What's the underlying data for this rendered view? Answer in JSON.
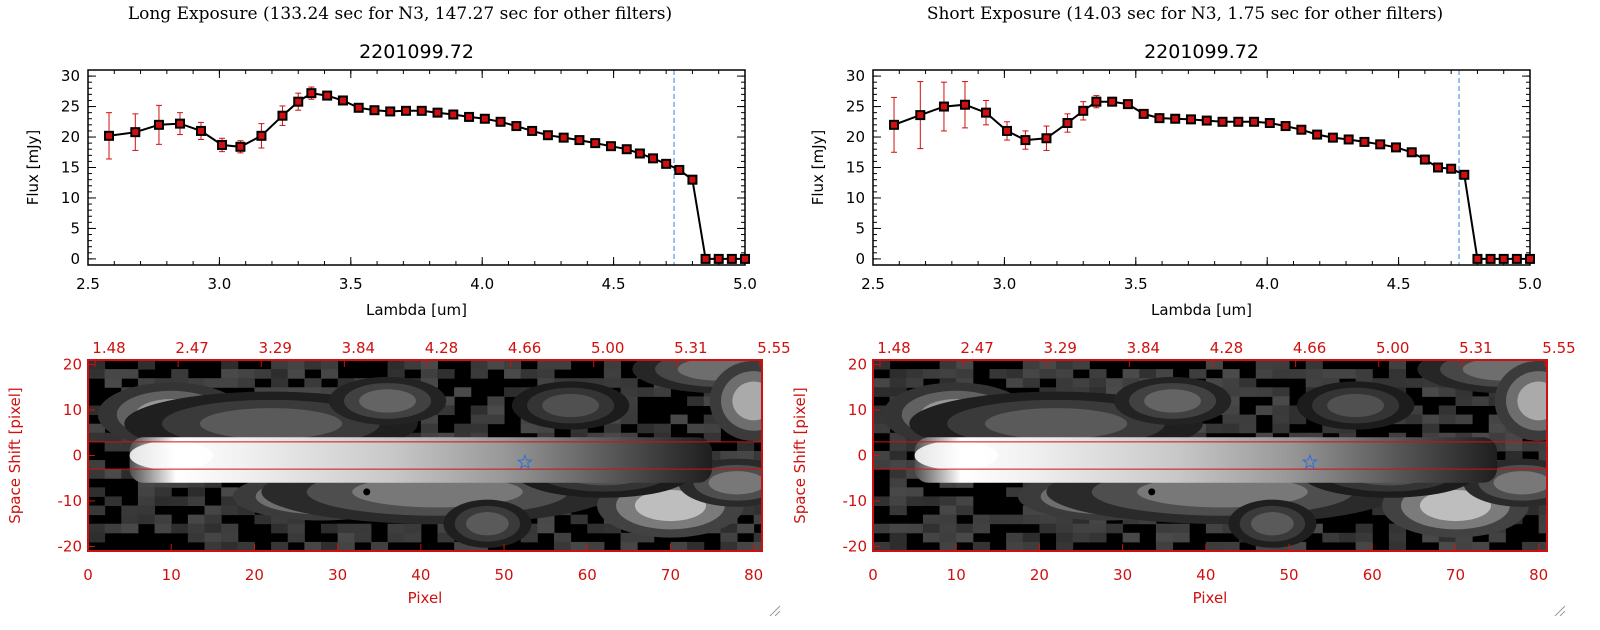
{
  "panels": [
    {
      "exposure_title": "Long Exposure (133.24 sec for N3, 147.27 sec for other filters)",
      "chart_data": {
        "type": "line",
        "title": "2201099.72",
        "xlabel": "Lambda [um]",
        "ylabel": "Flux [mJy]",
        "xlim": [
          2.5,
          5.0
        ],
        "ylim": [
          -1,
          31
        ],
        "xticks": [
          "2.5",
          "3.0",
          "3.5",
          "4.0",
          "4.5",
          "5.0"
        ],
        "yticks": [
          "0",
          "5",
          "10",
          "15",
          "20",
          "25",
          "30"
        ],
        "x": [
          2.58,
          2.68,
          2.77,
          2.85,
          2.93,
          3.01,
          3.08,
          3.16,
          3.24,
          3.3,
          3.35,
          3.41,
          3.47,
          3.53,
          3.59,
          3.65,
          3.71,
          3.77,
          3.83,
          3.89,
          3.95,
          4.01,
          4.07,
          4.13,
          4.19,
          4.25,
          4.31,
          4.37,
          4.43,
          4.49,
          4.55,
          4.6,
          4.65,
          4.7,
          4.75,
          4.8,
          4.85,
          4.9,
          4.95,
          5.0
        ],
        "y": [
          20.2,
          20.8,
          22.0,
          22.2,
          21.0,
          18.7,
          18.4,
          20.2,
          23.5,
          25.8,
          27.2,
          26.8,
          26.0,
          24.8,
          24.4,
          24.2,
          24.3,
          24.3,
          24.0,
          23.7,
          23.3,
          23.0,
          22.5,
          21.8,
          21.0,
          20.3,
          19.9,
          19.5,
          19.0,
          18.5,
          18.0,
          17.3,
          16.5,
          15.6,
          14.6,
          13.0,
          0,
          0,
          0,
          0
        ],
        "yerr": [
          3.8,
          3.0,
          3.2,
          1.8,
          1.4,
          1.1,
          1.0,
          2.0,
          1.6,
          1.4,
          1.0,
          0.7,
          0.5,
          0.4,
          0.4,
          0.3,
          0.3,
          0.3,
          0.3,
          0.3,
          0.3,
          0.3,
          0.3,
          0.3,
          0.3,
          0.3,
          0.3,
          0.3,
          0.3,
          0.3,
          0.3,
          0.3,
          0.3,
          0.3,
          0.3,
          0.3,
          0,
          0,
          0,
          0
        ],
        "vline_x": 4.73,
        "line_color": "#000000",
        "marker_color": "#d01010",
        "error_color": "#d01010",
        "vline_color": "#3a7fe0",
        "image_panel": {
          "top_tick_labels": [
            "1.48",
            "2.47",
            "3.29",
            "3.84",
            "4.28",
            "4.66",
            "5.00",
            "5.31",
            "5.55"
          ],
          "bottom_ticks": [
            "0",
            "10",
            "20",
            "30",
            "40",
            "50",
            "60",
            "70",
            "80"
          ],
          "left_ticks": [
            "20",
            "10",
            "0",
            "-10",
            "-20"
          ],
          "xlabel": "Pixel",
          "ylabel": "Space Shift [pixel]",
          "xlim": [
            0,
            81
          ],
          "ylim": [
            -21,
            21
          ],
          "aperture_lines_y": [
            3,
            -3
          ],
          "star_position": [
            52.5,
            -1.5
          ],
          "axis_color": "#d01010",
          "star_color": "#2f6fd8"
        }
      }
    },
    {
      "exposure_title": "Short Exposure (14.03 sec for N3, 1.75 sec for other filters)",
      "chart_data": {
        "type": "line",
        "title": "2201099.72",
        "xlabel": "Lambda [um]",
        "ylabel": "Flux [mJy]",
        "xlim": [
          2.5,
          5.0
        ],
        "ylim": [
          -1,
          31
        ],
        "xticks": [
          "2.5",
          "3.0",
          "3.5",
          "4.0",
          "4.5",
          "5.0"
        ],
        "yticks": [
          "0",
          "5",
          "10",
          "15",
          "20",
          "25",
          "30"
        ],
        "x": [
          2.58,
          2.68,
          2.77,
          2.85,
          2.93,
          3.01,
          3.08,
          3.16,
          3.24,
          3.3,
          3.35,
          3.41,
          3.47,
          3.53,
          3.59,
          3.65,
          3.71,
          3.77,
          3.83,
          3.89,
          3.95,
          4.01,
          4.07,
          4.13,
          4.19,
          4.25,
          4.31,
          4.37,
          4.43,
          4.49,
          4.55,
          4.6,
          4.65,
          4.7,
          4.75,
          4.8,
          4.85,
          4.9,
          4.95,
          5.0
        ],
        "y": [
          22.0,
          23.6,
          25.0,
          25.3,
          24.0,
          21.0,
          19.5,
          19.8,
          22.3,
          24.3,
          25.8,
          25.8,
          25.4,
          23.8,
          23.1,
          23.0,
          22.9,
          22.7,
          22.5,
          22.5,
          22.5,
          22.3,
          21.8,
          21.2,
          20.4,
          19.9,
          19.6,
          19.2,
          18.8,
          18.3,
          17.5,
          16.3,
          15.0,
          14.8,
          13.8,
          0,
          0,
          0,
          0,
          0
        ],
        "yerr": [
          4.5,
          5.5,
          4.0,
          3.8,
          2.0,
          1.5,
          1.5,
          2.0,
          1.5,
          1.5,
          1.0,
          0.7,
          0.5,
          0.4,
          0.4,
          0.3,
          0.3,
          0.3,
          0.3,
          0.3,
          0.3,
          0.3,
          0.3,
          0.3,
          0.3,
          0.3,
          0.3,
          0.3,
          0.3,
          0.3,
          0.3,
          0.3,
          0.3,
          0.3,
          0.3,
          0,
          0,
          0,
          0,
          0
        ],
        "vline_x": 4.73,
        "line_color": "#000000",
        "marker_color": "#d01010",
        "error_color": "#d01010",
        "vline_color": "#3a7fe0",
        "image_panel": {
          "top_tick_labels": [
            "1.48",
            "2.47",
            "3.29",
            "3.84",
            "4.28",
            "4.66",
            "5.00",
            "5.31",
            "5.55"
          ],
          "bottom_ticks": [
            "0",
            "10",
            "20",
            "30",
            "40",
            "50",
            "60",
            "70",
            "80"
          ],
          "left_ticks": [
            "20",
            "10",
            "0",
            "-10",
            "-20"
          ],
          "xlabel": "Pixel",
          "ylabel": "Space Shift [pixel]",
          "xlim": [
            0,
            81
          ],
          "ylim": [
            -21,
            21
          ],
          "aperture_lines_y": [
            3,
            -3
          ],
          "star_position": [
            52.5,
            -1.5
          ],
          "axis_color": "#d01010",
          "star_color": "#2f6fd8"
        }
      }
    }
  ]
}
